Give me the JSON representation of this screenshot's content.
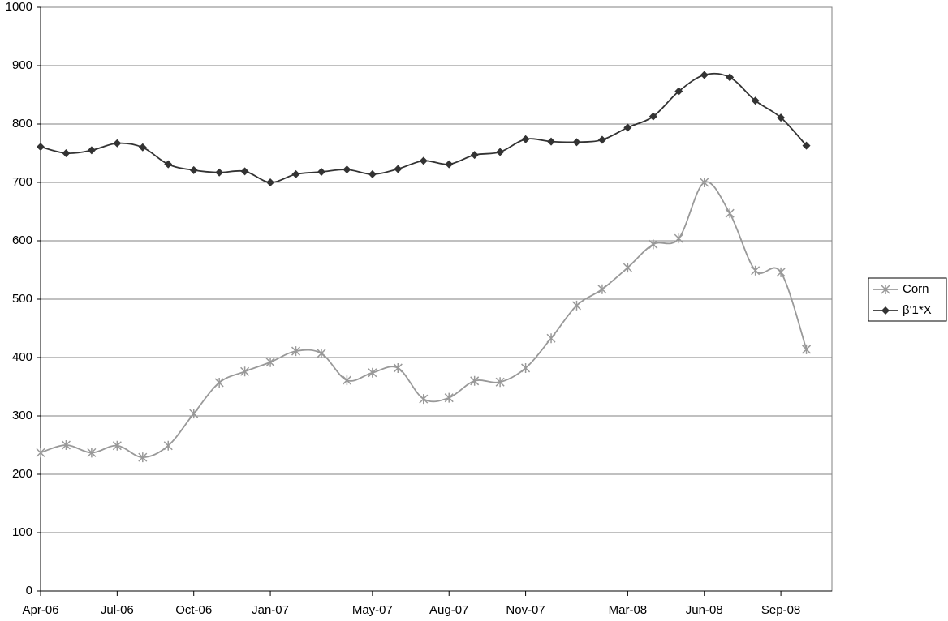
{
  "chart_data": {
    "type": "line",
    "x": [
      "Apr-06",
      "May-06",
      "Jun-06",
      "Jul-06",
      "Aug-06",
      "Sep-06",
      "Oct-06",
      "Nov-06",
      "Dec-06",
      "Jan-07",
      "Feb-07",
      "Mar-07",
      "Apr-07",
      "May-07",
      "Jun-07",
      "Jul-07",
      "Aug-07",
      "Sep-07",
      "Oct-07",
      "Nov-07",
      "Dec-07",
      "Jan-08",
      "Feb-08",
      "Mar-08",
      "Apr-08",
      "May-08",
      "Jun-08",
      "Jul-08",
      "Aug-08",
      "Sep-08",
      "Oct-08"
    ],
    "series": [
      {
        "name": "Corn",
        "color": "#999999",
        "marker": "asterisk",
        "values": [
          237,
          250,
          237,
          249,
          229,
          249,
          304,
          357,
          376,
          392,
          411,
          407,
          361,
          374,
          382,
          329,
          331,
          360,
          358,
          382,
          433,
          489,
          517,
          554,
          594,
          604,
          700,
          647,
          549,
          546,
          414
        ]
      },
      {
        "name": "β'1*X",
        "color": "#333333",
        "marker": "diamond",
        "values": [
          761,
          750,
          755,
          767,
          760,
          731,
          721,
          717,
          719,
          700,
          714,
          718,
          722,
          714,
          723,
          737,
          731,
          747,
          752,
          774,
          770,
          769,
          773,
          794,
          813,
          856,
          884,
          880,
          840,
          811,
          763
        ]
      }
    ],
    "xlim": [
      "Apr-06",
      "Nov-08"
    ],
    "xticks": [
      "Apr-06",
      "Jul-06",
      "Oct-06",
      "Jan-07",
      "May-07",
      "Aug-07",
      "Nov-07",
      "Mar-08",
      "Jun-08",
      "Sep-08"
    ],
    "ylim": [
      0,
      1000
    ],
    "yticks": [
      0,
      100,
      200,
      300,
      400,
      500,
      600,
      700,
      800,
      900,
      1000
    ],
    "grid": true,
    "legend": "right"
  }
}
